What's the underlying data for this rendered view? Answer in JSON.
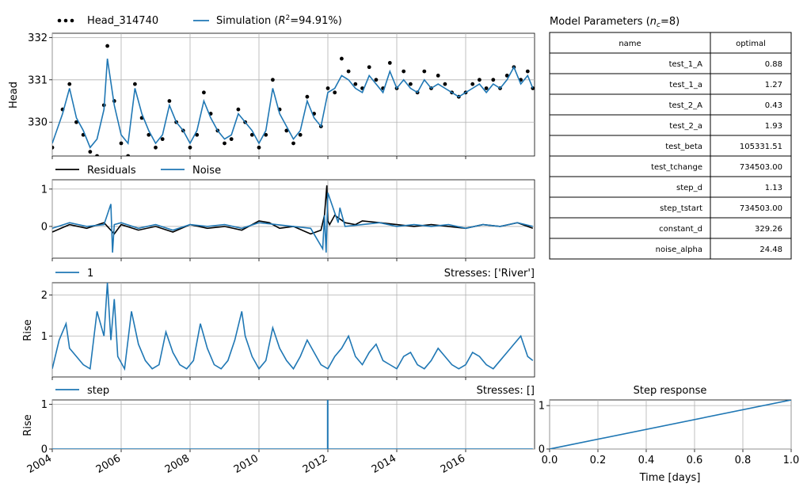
{
  "colors": {
    "simulation": "#1f77b4",
    "observed": "#000000",
    "residuals": "#000000",
    "noise": "#1f77b4",
    "grid": "#b0b0b0"
  },
  "legend": {
    "head": "Head_314740",
    "simulation_prefix": "Simulation (",
    "simulation_r2_symbol": "R",
    "simulation_r2_exp": "2",
    "simulation_r2_value": "=94.91%)",
    "residuals": "Residuals",
    "noise": "Noise",
    "river": "1",
    "step": "step"
  },
  "stresses": {
    "river": "Stresses: ['River']",
    "step": "Stresses: []"
  },
  "params_title": {
    "prefix": "Model Parameters (",
    "symbol": "n",
    "sub": "c",
    "suffix": "=8)"
  },
  "step_title": "Step response",
  "chart_data": [
    {
      "type": "line",
      "id": "head",
      "ylabel": "Head",
      "xlim": [
        2004,
        2018
      ],
      "ylim": [
        329.2,
        332.1
      ],
      "yticks": [
        330,
        331,
        332
      ],
      "xticks": [
        2004,
        2006,
        2008,
        2010,
        2012,
        2014,
        2016
      ],
      "grid": true,
      "series": [
        {
          "name": "Head_314740",
          "style": "points",
          "x": [
            2004.0,
            2004.3,
            2004.5,
            2004.7,
            2004.9,
            2005.1,
            2005.3,
            2005.5,
            2005.6,
            2005.8,
            2006.0,
            2006.2,
            2006.4,
            2006.6,
            2006.8,
            2007.0,
            2007.2,
            2007.4,
            2007.6,
            2007.8,
            2008.0,
            2008.2,
            2008.4,
            2008.6,
            2008.8,
            2009.0,
            2009.2,
            2009.4,
            2009.6,
            2009.8,
            2010.0,
            2010.2,
            2010.4,
            2010.6,
            2010.8,
            2011.0,
            2011.2,
            2011.4,
            2011.6,
            2011.8,
            2012.0,
            2012.2,
            2012.4,
            2012.6,
            2012.8,
            2013.0,
            2013.2,
            2013.4,
            2013.6,
            2013.8,
            2014.0,
            2014.2,
            2014.4,
            2014.6,
            2014.8,
            2015.0,
            2015.2,
            2015.4,
            2015.6,
            2015.8,
            2016.0,
            2016.2,
            2016.4,
            2016.6,
            2016.8,
            2017.0,
            2017.2,
            2017.4,
            2017.6,
            2017.8,
            2017.95
          ],
          "y": [
            329.4,
            330.3,
            330.9,
            330.0,
            329.7,
            329.3,
            329.2,
            330.4,
            331.8,
            330.5,
            329.5,
            329.2,
            330.9,
            330.1,
            329.7,
            329.4,
            329.6,
            330.5,
            330.0,
            329.8,
            329.4,
            329.7,
            330.7,
            330.2,
            329.8,
            329.5,
            329.6,
            330.3,
            330.0,
            329.7,
            329.4,
            329.7,
            331.0,
            330.3,
            329.8,
            329.5,
            329.7,
            330.6,
            330.2,
            329.9,
            330.8,
            330.7,
            331.5,
            331.2,
            330.9,
            330.8,
            331.3,
            331.0,
            330.8,
            331.4,
            330.8,
            331.2,
            330.9,
            330.7,
            331.2,
            330.8,
            331.1,
            330.9,
            330.7,
            330.6,
            330.7,
            330.9,
            331.0,
            330.8,
            331.0,
            330.8,
            331.1,
            331.3,
            331.0,
            331.2,
            330.8
          ]
        },
        {
          "name": "Simulation",
          "style": "line",
          "x": [
            2004.0,
            2004.3,
            2004.5,
            2004.7,
            2004.9,
            2005.1,
            2005.3,
            2005.5,
            2005.6,
            2005.8,
            2006.0,
            2006.2,
            2006.4,
            2006.6,
            2006.8,
            2007.0,
            2007.2,
            2007.4,
            2007.6,
            2007.8,
            2008.0,
            2008.2,
            2008.4,
            2008.6,
            2008.8,
            2009.0,
            2009.2,
            2009.4,
            2009.6,
            2009.8,
            2010.0,
            2010.2,
            2010.4,
            2010.6,
            2010.8,
            2011.0,
            2011.2,
            2011.4,
            2011.6,
            2011.8,
            2012.0,
            2012.2,
            2012.4,
            2012.6,
            2012.8,
            2013.0,
            2013.2,
            2013.4,
            2013.6,
            2013.8,
            2014.0,
            2014.2,
            2014.4,
            2014.6,
            2014.8,
            2015.0,
            2015.2,
            2015.4,
            2015.6,
            2015.8,
            2016.0,
            2016.2,
            2016.4,
            2016.6,
            2016.8,
            2017.0,
            2017.2,
            2017.4,
            2017.6,
            2017.8,
            2017.95
          ],
          "y": [
            329.5,
            330.2,
            330.8,
            330.1,
            329.8,
            329.4,
            329.6,
            330.3,
            331.5,
            330.4,
            329.7,
            329.5,
            330.8,
            330.2,
            329.8,
            329.5,
            329.7,
            330.4,
            330.0,
            329.8,
            329.5,
            329.8,
            330.5,
            330.1,
            329.8,
            329.6,
            329.7,
            330.2,
            330.0,
            329.8,
            329.5,
            329.8,
            330.8,
            330.2,
            329.9,
            329.6,
            329.8,
            330.5,
            330.1,
            329.9,
            330.7,
            330.8,
            331.1,
            331.0,
            330.8,
            330.7,
            331.1,
            330.9,
            330.7,
            331.2,
            330.8,
            331.0,
            330.8,
            330.7,
            331.0,
            330.8,
            330.9,
            330.8,
            330.7,
            330.6,
            330.7,
            330.8,
            330.9,
            330.7,
            330.9,
            330.8,
            331.0,
            331.3,
            330.9,
            331.1,
            330.8
          ]
        }
      ]
    },
    {
      "type": "line",
      "id": "residuals",
      "xlim": [
        2004,
        2018
      ],
      "ylim": [
        -0.85,
        1.25
      ],
      "yticks": [
        0,
        1
      ],
      "grid": true,
      "series": [
        {
          "name": "Residuals",
          "x": [
            2004.0,
            2004.5,
            2005.0,
            2005.5,
            2005.8,
            2006.0,
            2006.5,
            2007.0,
            2007.5,
            2008.0,
            2008.5,
            2009.0,
            2009.5,
            2010.0,
            2010.3,
            2010.6,
            2011.0,
            2011.5,
            2011.8,
            2011.9,
            2011.97,
            2012.0,
            2012.05,
            2012.2,
            2012.5,
            2012.8,
            2013.0,
            2013.5,
            2014.0,
            2014.5,
            2015.0,
            2015.5,
            2016.0,
            2016.5,
            2017.0,
            2017.5,
            2017.95
          ],
          "y": [
            -0.15,
            0.05,
            -0.05,
            0.1,
            -0.2,
            0.05,
            -0.1,
            0.0,
            -0.15,
            0.05,
            -0.05,
            0.0,
            -0.1,
            0.15,
            0.1,
            -0.05,
            0.0,
            -0.2,
            -0.1,
            0.3,
            1.1,
            0.15,
            0.05,
            0.3,
            0.1,
            0.05,
            0.15,
            0.1,
            0.05,
            0.0,
            0.05,
            0.0,
            -0.05,
            0.05,
            0.0,
            0.1,
            -0.05
          ]
        },
        {
          "name": "Noise",
          "x": [
            2004.0,
            2004.5,
            2005.0,
            2005.5,
            2005.7,
            2005.75,
            2005.8,
            2006.0,
            2006.5,
            2007.0,
            2007.5,
            2008.0,
            2008.5,
            2009.0,
            2009.5,
            2010.0,
            2010.5,
            2011.0,
            2011.5,
            2011.85,
            2011.9,
            2011.95,
            2012.0,
            2012.3,
            2012.35,
            2012.5,
            2013.0,
            2013.5,
            2014.0,
            2014.5,
            2015.0,
            2015.5,
            2016.0,
            2016.5,
            2017.0,
            2017.5,
            2017.95
          ],
          "y": [
            -0.05,
            0.1,
            0.0,
            0.05,
            0.6,
            -0.7,
            0.05,
            0.1,
            -0.05,
            0.05,
            -0.1,
            0.05,
            0.0,
            0.05,
            -0.05,
            0.1,
            0.05,
            0.0,
            -0.05,
            -0.6,
            0.3,
            -0.7,
            0.9,
            0.1,
            0.5,
            0.0,
            0.05,
            0.1,
            0.0,
            0.05,
            0.0,
            0.05,
            -0.05,
            0.05,
            0.0,
            0.1,
            0.0
          ]
        }
      ]
    },
    {
      "type": "line",
      "id": "river",
      "ylabel": "Rise",
      "xlim": [
        2004,
        2018
      ],
      "ylim": [
        0.0,
        2.3
      ],
      "yticks": [
        1,
        2
      ],
      "grid": true,
      "series": [
        {
          "name": "1",
          "x": [
            2004.0,
            2004.2,
            2004.4,
            2004.5,
            2004.7,
            2004.9,
            2005.1,
            2005.3,
            2005.5,
            2005.6,
            2005.7,
            2005.8,
            2005.9,
            2006.1,
            2006.3,
            2006.5,
            2006.7,
            2006.9,
            2007.1,
            2007.3,
            2007.5,
            2007.7,
            2007.9,
            2008.1,
            2008.3,
            2008.5,
            2008.7,
            2008.9,
            2009.1,
            2009.3,
            2009.5,
            2009.6,
            2009.8,
            2010.0,
            2010.2,
            2010.4,
            2010.6,
            2010.8,
            2011.0,
            2011.2,
            2011.4,
            2011.6,
            2011.8,
            2012.0,
            2012.2,
            2012.4,
            2012.6,
            2012.8,
            2013.0,
            2013.2,
            2013.4,
            2013.6,
            2013.8,
            2014.0,
            2014.2,
            2014.4,
            2014.6,
            2014.8,
            2015.0,
            2015.2,
            2015.4,
            2015.6,
            2015.8,
            2016.0,
            2016.2,
            2016.4,
            2016.6,
            2016.8,
            2017.0,
            2017.2,
            2017.4,
            2017.6,
            2017.8,
            2017.95
          ],
          "y": [
            0.2,
            0.9,
            1.3,
            0.7,
            0.5,
            0.3,
            0.2,
            1.6,
            1.0,
            2.3,
            0.9,
            1.9,
            0.5,
            0.2,
            1.6,
            0.8,
            0.4,
            0.2,
            0.3,
            1.1,
            0.6,
            0.3,
            0.2,
            0.4,
            1.3,
            0.7,
            0.3,
            0.2,
            0.4,
            0.9,
            1.6,
            1.0,
            0.5,
            0.2,
            0.4,
            1.2,
            0.7,
            0.4,
            0.2,
            0.5,
            0.9,
            0.6,
            0.3,
            0.2,
            0.5,
            0.7,
            1.0,
            0.5,
            0.3,
            0.6,
            0.8,
            0.4,
            0.3,
            0.2,
            0.5,
            0.6,
            0.3,
            0.2,
            0.4,
            0.7,
            0.5,
            0.3,
            0.2,
            0.3,
            0.6,
            0.5,
            0.3,
            0.2,
            0.4,
            0.6,
            0.8,
            1.0,
            0.5,
            0.4
          ]
        }
      ]
    },
    {
      "type": "line",
      "id": "step",
      "ylabel": "Rise",
      "xlim": [
        2004,
        2018
      ],
      "ylim": [
        0,
        1.1
      ],
      "yticks": [
        0,
        1
      ],
      "xticks": [
        2004,
        2006,
        2008,
        2010,
        2012,
        2014,
        2016
      ],
      "grid": true,
      "series": [
        {
          "name": "step",
          "x": [
            2004.0,
            2011.99,
            2011.99,
            2012.0,
            2012.0,
            2017.95
          ],
          "y": [
            0,
            0,
            1.1,
            1.1,
            0,
            0
          ]
        }
      ]
    },
    {
      "type": "line",
      "id": "step_response",
      "title": "Step response",
      "xlabel": "Time [days]",
      "xlim": [
        0,
        1
      ],
      "ylim": [
        0,
        1.13
      ],
      "xticks": [
        0.0,
        0.2,
        0.4,
        0.6,
        0.8,
        1.0
      ],
      "yticks": [
        0,
        1
      ],
      "grid": true,
      "series": [
        {
          "name": "step response",
          "x": [
            0,
            1
          ],
          "y": [
            0,
            1.13
          ]
        }
      ]
    }
  ],
  "params_table": {
    "headers": [
      "name",
      "optimal"
    ],
    "rows": [
      [
        "test_1_A",
        "0.88"
      ],
      [
        "test_1_a",
        "1.27"
      ],
      [
        "test_2_A",
        "0.43"
      ],
      [
        "test_2_a",
        "1.93"
      ],
      [
        "test_beta",
        "105331.51"
      ],
      [
        "test_tchange",
        "734503.00"
      ],
      [
        "step_d",
        "1.13"
      ],
      [
        "step_tstart",
        "734503.00"
      ],
      [
        "constant_d",
        "329.26"
      ],
      [
        "noise_alpha",
        "24.48"
      ]
    ]
  }
}
